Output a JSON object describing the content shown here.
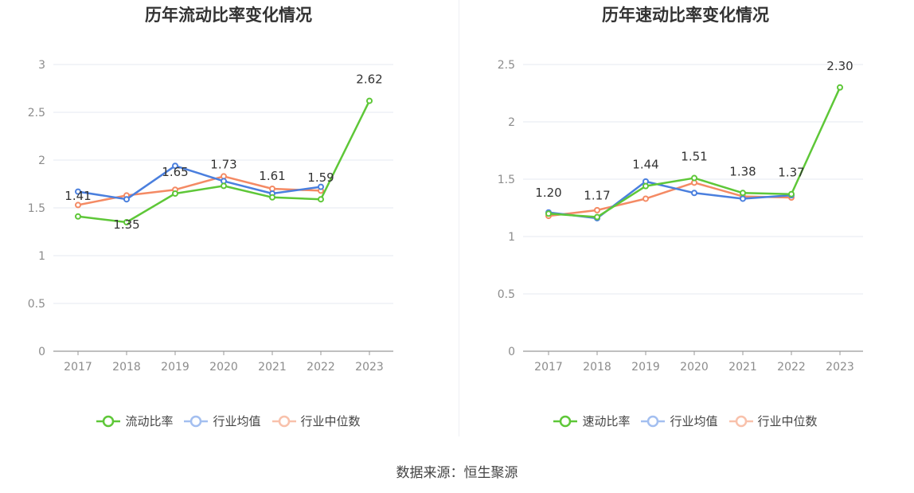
{
  "charts": [
    {
      "title": "历年流动比率变化情况",
      "legend": [
        "流动比率",
        "行业均值",
        "行业中位数"
      ]
    },
    {
      "title": "历年速动比率变化情况",
      "legend": [
        "速动比率",
        "行业均值",
        "行业中位数"
      ]
    }
  ],
  "source_label": "数据来源：恒生聚源",
  "colors": {
    "company": "#5ec738",
    "industry_mean": "#4a7fde",
    "industry_median": "#f48a64",
    "grid": "#e6e9f2",
    "axis": "#999999",
    "tick_text": "#8c8c8c",
    "label_text": "#333333"
  },
  "chart_data": [
    {
      "type": "line",
      "title": "历年流动比率变化情况",
      "categories": [
        "2017",
        "2018",
        "2019",
        "2020",
        "2021",
        "2022",
        "2023"
      ],
      "ylim": [
        0,
        3
      ],
      "yticks": [
        "0",
        "0.5",
        "1",
        "1.5",
        "2",
        "2.5",
        "3"
      ],
      "grid": true,
      "legend_position": "bottom",
      "series": [
        {
          "name": "流动比率",
          "values": [
            1.41,
            1.35,
            1.65,
            1.73,
            1.61,
            1.59,
            2.62
          ],
          "labels": [
            "1.41",
            "1.35",
            "1.65",
            "1.73",
            "1.61",
            "1.59",
            "2.62"
          ]
        },
        {
          "name": "行业均值",
          "values": [
            1.67,
            1.59,
            1.94,
            1.78,
            1.65,
            1.72,
            null
          ]
        },
        {
          "name": "行业中位数",
          "values": [
            1.53,
            1.63,
            1.69,
            1.83,
            1.7,
            1.68,
            null
          ]
        }
      ]
    },
    {
      "type": "line",
      "title": "历年速动比率变化情况",
      "categories": [
        "2017",
        "2018",
        "2019",
        "2020",
        "2021",
        "2022",
        "2023"
      ],
      "ylim": [
        0,
        2.5
      ],
      "yticks": [
        "0",
        "0.5",
        "1",
        "1.5",
        "2",
        "2.5"
      ],
      "grid": true,
      "legend_position": "bottom",
      "series": [
        {
          "name": "速动比率",
          "values": [
            1.2,
            1.17,
            1.44,
            1.51,
            1.38,
            1.37,
            2.3
          ],
          "labels": [
            "1.20",
            "1.17",
            "1.44",
            "1.51",
            "1.38",
            "1.37",
            "2.30"
          ]
        },
        {
          "name": "行业均值",
          "values": [
            1.21,
            1.16,
            1.48,
            1.38,
            1.33,
            1.36,
            null
          ]
        },
        {
          "name": "行业中位数",
          "values": [
            1.18,
            1.23,
            1.33,
            1.47,
            1.35,
            1.34,
            null
          ]
        }
      ]
    }
  ]
}
